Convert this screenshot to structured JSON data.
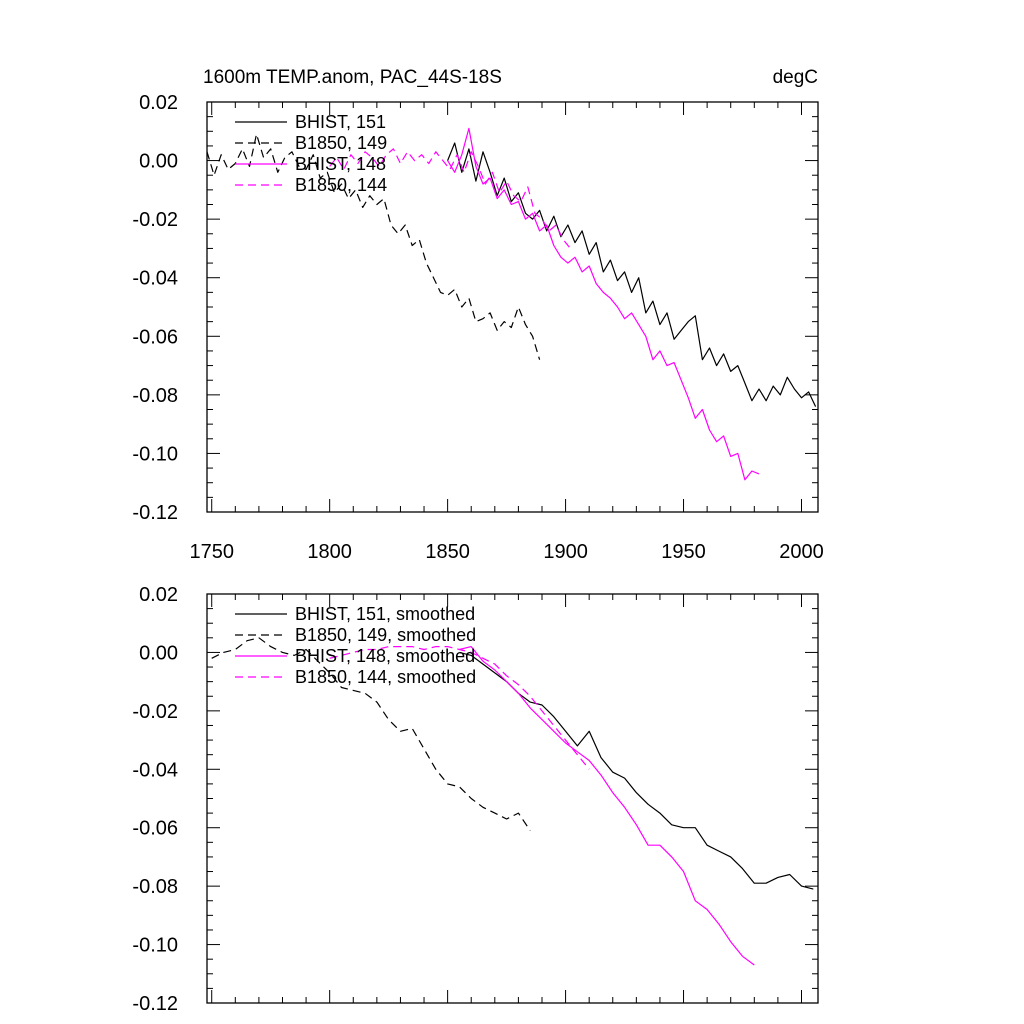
{
  "chart_data": [
    {
      "type": "line",
      "title": "1600m TEMP.anom, PAC_44S-18S",
      "units": "degC",
      "xlim": [
        1748,
        2007
      ],
      "ylim": [
        -0.12,
        0.02
      ],
      "x_ticks": [
        1750,
        1800,
        1850,
        1900,
        1950,
        2000
      ],
      "y_ticks": [
        0.02,
        0.0,
        -0.02,
        -0.04,
        -0.06,
        -0.08,
        -0.1,
        -0.12
      ],
      "y_tick_labels": [
        "0.02",
        "0.00",
        "-0.02",
        "-0.04",
        "-0.06",
        "-0.08",
        "-0.10",
        "-0.12"
      ],
      "show_x_tick_labels": true,
      "series": [
        {
          "name": "BHIST, 151",
          "color": "#000000",
          "dash": "solid",
          "x": [
            1850,
            1853,
            1856,
            1859,
            1862,
            1865,
            1868,
            1871,
            1874,
            1877,
            1880,
            1883,
            1886,
            1889,
            1892,
            1895,
            1898,
            1901,
            1904,
            1907,
            1910,
            1913,
            1916,
            1919,
            1922,
            1925,
            1928,
            1931,
            1934,
            1937,
            1940,
            1943,
            1946,
            1949,
            1952,
            1955,
            1958,
            1961,
            1964,
            1967,
            1970,
            1973,
            1976,
            1979,
            1982,
            1985,
            1988,
            1991,
            1994,
            1997,
            2000,
            2003,
            2006
          ],
          "y": [
            0.0,
            0.006,
            -0.004,
            0.004,
            -0.007,
            0.003,
            -0.004,
            -0.012,
            -0.006,
            -0.014,
            -0.011,
            -0.018,
            -0.02,
            -0.017,
            -0.024,
            -0.019,
            -0.026,
            -0.022,
            -0.028,
            -0.024,
            -0.032,
            -0.028,
            -0.038,
            -0.034,
            -0.041,
            -0.038,
            -0.045,
            -0.04,
            -0.052,
            -0.048,
            -0.056,
            -0.052,
            -0.061,
            -0.058,
            -0.055,
            -0.053,
            -0.068,
            -0.064,
            -0.07,
            -0.066,
            -0.072,
            -0.07,
            -0.076,
            -0.082,
            -0.078,
            -0.082,
            -0.077,
            -0.08,
            -0.074,
            -0.078,
            -0.081,
            -0.079,
            -0.084
          ]
        },
        {
          "name": "B1850, 149",
          "color": "#000000",
          "dash": "8,5",
          "x": [
            1748,
            1751,
            1754,
            1757,
            1760,
            1763,
            1766,
            1769,
            1772,
            1775,
            1778,
            1781,
            1784,
            1787,
            1790,
            1793,
            1796,
            1799,
            1802,
            1805,
            1808,
            1811,
            1814,
            1817,
            1820,
            1823,
            1826,
            1829,
            1832,
            1835,
            1838,
            1841,
            1844,
            1847,
            1850,
            1853,
            1856,
            1859,
            1862,
            1865,
            1868,
            1871,
            1874,
            1877,
            1880,
            1883,
            1886,
            1889
          ],
          "y": [
            0.003,
            -0.005,
            0.002,
            -0.003,
            -0.001,
            0.004,
            -0.002,
            0.009,
            0.001,
            0.004,
            -0.004,
            0.001,
            0.003,
            -0.002,
            -0.003,
            0.002,
            -0.006,
            -0.004,
            -0.011,
            -0.008,
            -0.013,
            -0.01,
            -0.016,
            -0.012,
            -0.015,
            -0.013,
            -0.022,
            -0.025,
            -0.022,
            -0.029,
            -0.027,
            -0.035,
            -0.04,
            -0.045,
            -0.046,
            -0.044,
            -0.05,
            -0.047,
            -0.055,
            -0.054,
            -0.052,
            -0.058,
            -0.055,
            -0.057,
            -0.05,
            -0.056,
            -0.06,
            -0.068
          ]
        },
        {
          "name": "BHIST, 148",
          "color": "#ff00ff",
          "dash": "solid",
          "x": [
            1850,
            1853,
            1856,
            1859,
            1862,
            1865,
            1868,
            1871,
            1874,
            1877,
            1880,
            1883,
            1886,
            1889,
            1892,
            1895,
            1898,
            1901,
            1904,
            1907,
            1910,
            1913,
            1916,
            1919,
            1922,
            1925,
            1928,
            1931,
            1934,
            1937,
            1940,
            1943,
            1946,
            1949,
            1952,
            1955,
            1958,
            1961,
            1964,
            1967,
            1970,
            1973,
            1976,
            1979,
            1982
          ],
          "y": [
            0.0,
            -0.004,
            0.002,
            0.011,
            -0.002,
            -0.008,
            -0.006,
            -0.013,
            -0.01,
            -0.015,
            -0.014,
            -0.02,
            -0.018,
            -0.024,
            -0.022,
            -0.029,
            -0.033,
            -0.035,
            -0.033,
            -0.038,
            -0.036,
            -0.042,
            -0.045,
            -0.047,
            -0.05,
            -0.054,
            -0.052,
            -0.056,
            -0.06,
            -0.068,
            -0.065,
            -0.07,
            -0.069,
            -0.075,
            -0.081,
            -0.088,
            -0.085,
            -0.092,
            -0.096,
            -0.094,
            -0.101,
            -0.1,
            -0.109,
            -0.106,
            -0.107
          ]
        },
        {
          "name": "B1850, 144",
          "color": "#ff00ff",
          "dash": "8,5",
          "x": [
            1800,
            1803,
            1806,
            1809,
            1812,
            1815,
            1818,
            1821,
            1824,
            1827,
            1830,
            1833,
            1836,
            1839,
            1842,
            1845,
            1848,
            1851,
            1854,
            1857,
            1860,
            1863,
            1866,
            1869,
            1872,
            1875,
            1878,
            1881,
            1884,
            1887,
            1890,
            1893,
            1896,
            1899,
            1902
          ],
          "y": [
            -0.002,
            0.001,
            -0.003,
            0.002,
            -0.001,
            0.003,
            0.001,
            -0.002,
            0.002,
            0.004,
            -0.001,
            0.003,
            0.0,
            0.002,
            -0.001,
            0.003,
            0.0,
            -0.003,
            0.002,
            -0.004,
            0.003,
            -0.002,
            -0.008,
            -0.004,
            -0.011,
            -0.007,
            -0.012,
            -0.014,
            -0.009,
            -0.018,
            -0.02,
            -0.024,
            -0.022,
            -0.027,
            -0.03
          ]
        }
      ],
      "legend": {
        "placement": "top-left"
      }
    },
    {
      "type": "line",
      "title": "",
      "units": "",
      "xlim": [
        1748,
        2007
      ],
      "ylim": [
        -0.12,
        0.02
      ],
      "x_ticks": [
        1750,
        1800,
        1850,
        1900,
        1950,
        2000
      ],
      "y_ticks": [
        0.02,
        0.0,
        -0.02,
        -0.04,
        -0.06,
        -0.08,
        -0.1,
        -0.12
      ],
      "y_tick_labels": [
        "0.02",
        "0.00",
        "-0.02",
        "-0.04",
        "-0.06",
        "-0.08",
        "-0.10",
        "-0.12"
      ],
      "show_x_tick_labels": false,
      "series": [
        {
          "name": "BHIST, 151, smoothed",
          "color": "#000000",
          "dash": "solid",
          "x": [
            1855,
            1860,
            1865,
            1870,
            1875,
            1880,
            1885,
            1890,
            1895,
            1900,
            1905,
            1910,
            1915,
            1920,
            1925,
            1930,
            1935,
            1940,
            1945,
            1950,
            1955,
            1960,
            1965,
            1970,
            1975,
            1980,
            1985,
            1990,
            1995,
            2000,
            2005
          ],
          "y": [
            0.0,
            -0.001,
            -0.004,
            -0.007,
            -0.01,
            -0.014,
            -0.017,
            -0.018,
            -0.022,
            -0.027,
            -0.032,
            -0.027,
            -0.036,
            -0.041,
            -0.043,
            -0.048,
            -0.052,
            -0.055,
            -0.059,
            -0.06,
            -0.06,
            -0.066,
            -0.068,
            -0.07,
            -0.074,
            -0.079,
            -0.079,
            -0.077,
            -0.076,
            -0.08,
            -0.081
          ]
        },
        {
          "name": "B1850, 149, smoothed",
          "color": "#000000",
          "dash": "8,5",
          "x": [
            1750,
            1755,
            1760,
            1765,
            1770,
            1775,
            1780,
            1785,
            1790,
            1795,
            1800,
            1805,
            1810,
            1815,
            1820,
            1825,
            1830,
            1835,
            1840,
            1845,
            1850,
            1855,
            1860,
            1865,
            1870,
            1875,
            1880,
            1885
          ],
          "y": [
            -0.002,
            0.0,
            0.001,
            0.004,
            0.005,
            0.002,
            0.0,
            -0.001,
            0.001,
            -0.003,
            -0.007,
            -0.012,
            -0.013,
            -0.014,
            -0.017,
            -0.023,
            -0.027,
            -0.026,
            -0.033,
            -0.04,
            -0.045,
            -0.046,
            -0.05,
            -0.053,
            -0.055,
            -0.057,
            -0.055,
            -0.061
          ]
        },
        {
          "name": "BHIST, 148, smoothed",
          "color": "#ff00ff",
          "dash": "solid",
          "x": [
            1855,
            1860,
            1865,
            1870,
            1875,
            1880,
            1885,
            1890,
            1895,
            1900,
            1905,
            1910,
            1915,
            1920,
            1925,
            1930,
            1935,
            1940,
            1945,
            1950,
            1955,
            1960,
            1965,
            1970,
            1975,
            1980
          ],
          "y": [
            0.001,
            0.002,
            -0.003,
            -0.006,
            -0.01,
            -0.014,
            -0.019,
            -0.023,
            -0.027,
            -0.031,
            -0.034,
            -0.037,
            -0.042,
            -0.048,
            -0.053,
            -0.059,
            -0.066,
            -0.066,
            -0.07,
            -0.075,
            -0.085,
            -0.088,
            -0.093,
            -0.099,
            -0.104,
            -0.107
          ]
        },
        {
          "name": "B1850, 144, smoothed",
          "color": "#ff00ff",
          "dash": "8,5",
          "x": [
            1800,
            1805,
            1810,
            1815,
            1820,
            1825,
            1830,
            1835,
            1840,
            1845,
            1850,
            1855,
            1860,
            1865,
            1870,
            1875,
            1880,
            1885,
            1890,
            1895,
            1900,
            1905,
            1910
          ],
          "y": [
            -0.002,
            -0.001,
            0.0,
            0.001,
            0.001,
            0.002,
            0.002,
            0.002,
            0.001,
            0.002,
            0.002,
            0.001,
            0.0,
            -0.002,
            -0.004,
            -0.008,
            -0.011,
            -0.015,
            -0.02,
            -0.025,
            -0.03,
            -0.035,
            -0.04
          ]
        }
      ],
      "legend": {
        "placement": "top-left"
      }
    }
  ]
}
